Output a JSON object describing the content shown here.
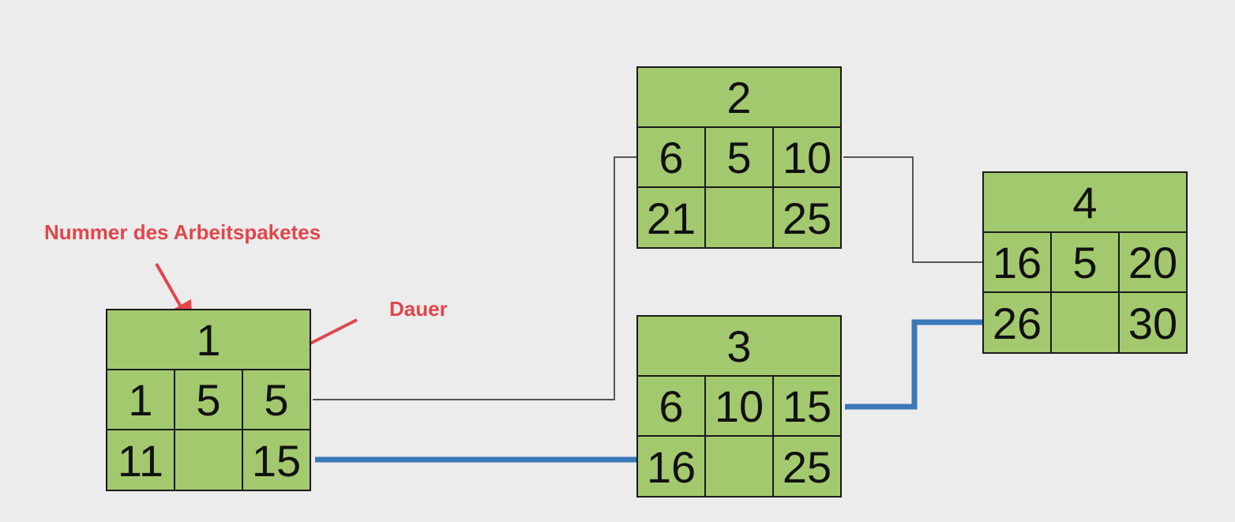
{
  "annotations": {
    "work_package_number": "Nummer des Arbeitspaketes",
    "duration": "Dauer"
  },
  "colors": {
    "background": "#ececec",
    "node_fill": "#a3c96e",
    "node_border": "#1a1a1a",
    "critical_path": "#3a78b8",
    "non_critical_line": "#555555",
    "annotation": "#e0464b"
  },
  "nodes": [
    {
      "id": "1",
      "faz": "1",
      "dauer": "5",
      "fez": "5",
      "saz": "11",
      "puffer": "",
      "sez": "15"
    },
    {
      "id": "2",
      "faz": "6",
      "dauer": "5",
      "fez": "10",
      "saz": "21",
      "puffer": "",
      "sez": "25"
    },
    {
      "id": "3",
      "faz": "6",
      "dauer": "10",
      "fez": "15",
      "saz": "16",
      "puffer": "",
      "sez": "25"
    },
    {
      "id": "4",
      "faz": "16",
      "dauer": "5",
      "fez": "20",
      "saz": "26",
      "puffer": "",
      "sez": "30"
    }
  ],
  "edges": [
    {
      "from": "1",
      "to": "2",
      "critical": false
    },
    {
      "from": "1",
      "to": "3",
      "critical": true
    },
    {
      "from": "2",
      "to": "4",
      "critical": false
    },
    {
      "from": "3",
      "to": "4",
      "critical": true
    }
  ]
}
